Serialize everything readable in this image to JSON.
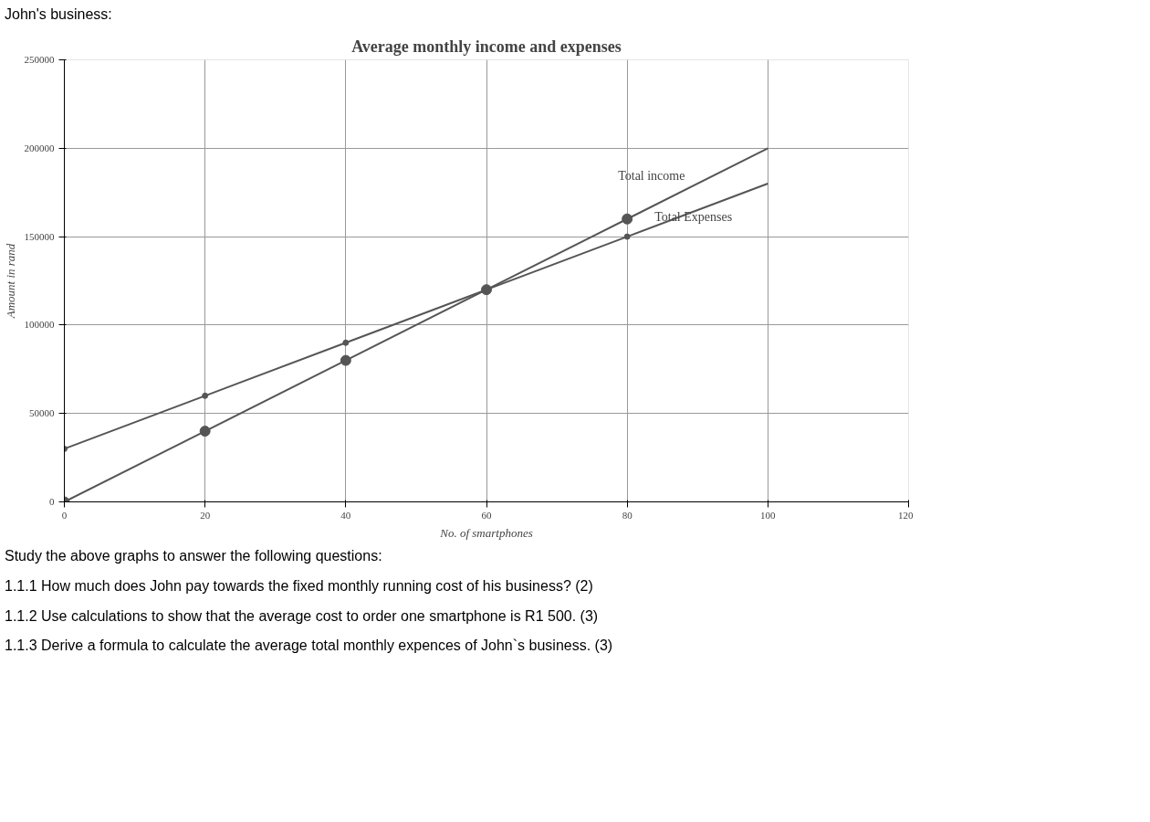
{
  "chart_data": {
    "type": "line",
    "title": "Average monthly income and expenses",
    "xlabel": "No. of smartphones",
    "ylabel": "Amount in rand",
    "x": [
      0,
      20,
      40,
      60,
      80,
      100
    ],
    "series": [
      {
        "name": "Total income",
        "color": "#555555",
        "values": [
          0,
          40000,
          80000,
          120000,
          160000,
          200000
        ]
      },
      {
        "name": "Total Expenses",
        "color": "#555555",
        "values": [
          30000,
          60000,
          90000,
          120000,
          150000,
          180000
        ]
      }
    ],
    "xlim": [
      0,
      120
    ],
    "ylim": [
      0,
      250000
    ],
    "xticks": [
      0,
      20,
      40,
      60,
      80,
      100,
      120
    ],
    "yticks": [
      0,
      50000,
      100000,
      150000,
      200000,
      250000
    ],
    "grid": true,
    "marker": "circle",
    "line_style": "solid",
    "annotations": [
      "John's business:",
      "Study the above graphs to answer the following questions:",
      "1.1.1 How much does John pay towards the fixed monthly running cost of his business? (2)",
      "1.1.2 Use calculations to show that the average cost to order one smartphone is R1 500. (3)",
      "1.1.3 Derive a formula to calculate the average total monthly expences of John`s business. (3)"
    ]
  }
}
